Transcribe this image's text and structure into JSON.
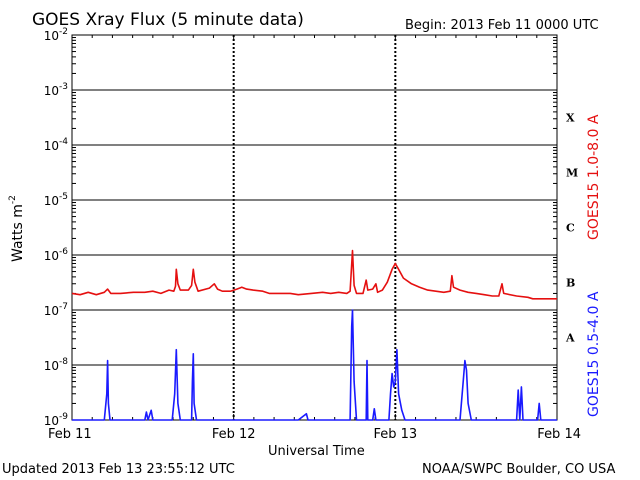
{
  "chart_data": {
    "type": "line",
    "title": "GOES Xray Flux (5 minute data)",
    "begin_label": "Begin:  2013 Feb 11 0000 UTC",
    "xlabel": "Universal Time",
    "ylabel": "Watts m",
    "ylabel_exponent": "-2",
    "y_scale": "log",
    "ylim": [
      1e-09,
      0.01
    ],
    "y_ticks": [
      {
        "base": "10",
        "exp": "-2",
        "value": 0.01
      },
      {
        "base": "10",
        "exp": "-3",
        "value": 0.001
      },
      {
        "base": "10",
        "exp": "-4",
        "value": 0.0001
      },
      {
        "base": "10",
        "exp": "-5",
        "value": 1e-05
      },
      {
        "base": "10",
        "exp": "-6",
        "value": 1e-06
      },
      {
        "base": "10",
        "exp": "-7",
        "value": 1e-07
      },
      {
        "base": "10",
        "exp": "-8",
        "value": 1e-08
      },
      {
        "base": "10",
        "exp": "-9",
        "value": 1e-09
      }
    ],
    "x_ticks": [
      {
        "label": "Feb 11",
        "day": 0
      },
      {
        "label": "Feb 12",
        "day": 1
      },
      {
        "label": "Feb 13",
        "day": 2
      },
      {
        "label": "Feb 14",
        "day": 3
      }
    ],
    "xlim_days": [
      0,
      3
    ],
    "flare_classes": [
      {
        "label": "X",
        "low": 0.0001,
        "high": 0.001
      },
      {
        "label": "M",
        "low": 1e-05,
        "high": 0.0001
      },
      {
        "label": "C",
        "low": 1e-06,
        "high": 1e-05
      },
      {
        "label": "B",
        "low": 1e-07,
        "high": 1e-06
      },
      {
        "label": "A",
        "low": 1e-08,
        "high": 1e-07
      }
    ],
    "grid": true,
    "series": [
      {
        "name": "GOES15 1.0-8.0 A",
        "color": "#e51010",
        "points": [
          [
            0.0,
            2e-07
          ],
          [
            0.05,
            1.9e-07
          ],
          [
            0.1,
            2.1e-07
          ],
          [
            0.15,
            1.9e-07
          ],
          [
            0.2,
            2.1e-07
          ],
          [
            0.22,
            2.4e-07
          ],
          [
            0.24,
            2e-07
          ],
          [
            0.3,
            2e-07
          ],
          [
            0.38,
            2.1e-07
          ],
          [
            0.45,
            2.1e-07
          ],
          [
            0.5,
            2.2e-07
          ],
          [
            0.55,
            2e-07
          ],
          [
            0.6,
            2.3e-07
          ],
          [
            0.63,
            2.2e-07
          ],
          [
            0.64,
            2.7e-07
          ],
          [
            0.645,
            5.5e-07
          ],
          [
            0.655,
            3e-07
          ],
          [
            0.67,
            2.3e-07
          ],
          [
            0.72,
            2.3e-07
          ],
          [
            0.74,
            2.8e-07
          ],
          [
            0.75,
            5.5e-07
          ],
          [
            0.76,
            3.2e-07
          ],
          [
            0.78,
            2.2e-07
          ],
          [
            0.85,
            2.5e-07
          ],
          [
            0.88,
            3e-07
          ],
          [
            0.9,
            2.4e-07
          ],
          [
            0.93,
            2.2e-07
          ],
          [
            0.98,
            2.2e-07
          ],
          [
            1.02,
            2.4e-07
          ],
          [
            1.05,
            2.6e-07
          ],
          [
            1.08,
            2.4e-07
          ],
          [
            1.12,
            2.3e-07
          ],
          [
            1.18,
            2.2e-07
          ],
          [
            1.22,
            2e-07
          ],
          [
            1.3,
            2e-07
          ],
          [
            1.35,
            2e-07
          ],
          [
            1.4,
            1.9e-07
          ],
          [
            1.48,
            2e-07
          ],
          [
            1.55,
            2.1e-07
          ],
          [
            1.6,
            2e-07
          ],
          [
            1.65,
            2.1e-07
          ],
          [
            1.7,
            2e-07
          ],
          [
            1.72,
            2.2e-07
          ],
          [
            1.735,
            1.2e-06
          ],
          [
            1.745,
            2.8e-07
          ],
          [
            1.76,
            2e-07
          ],
          [
            1.8,
            2e-07
          ],
          [
            1.82,
            3.5e-07
          ],
          [
            1.83,
            2.3e-07
          ],
          [
            1.86,
            2.4e-07
          ],
          [
            1.88,
            3e-07
          ],
          [
            1.89,
            2.1e-07
          ],
          [
            1.92,
            2.3e-07
          ],
          [
            1.95,
            3.2e-07
          ],
          [
            1.98,
            5.5e-07
          ],
          [
            2.0,
            7e-07
          ],
          [
            2.02,
            5.5e-07
          ],
          [
            2.05,
            3.8e-07
          ],
          [
            2.1,
            3e-07
          ],
          [
            2.15,
            2.6e-07
          ],
          [
            2.2,
            2.3e-07
          ],
          [
            2.25,
            2.2e-07
          ],
          [
            2.3,
            2.1e-07
          ],
          [
            2.34,
            2.2e-07
          ],
          [
            2.35,
            4.2e-07
          ],
          [
            2.36,
            2.6e-07
          ],
          [
            2.4,
            2.3e-07
          ],
          [
            2.45,
            2.1e-07
          ],
          [
            2.5,
            2e-07
          ],
          [
            2.55,
            1.9e-07
          ],
          [
            2.6,
            1.8e-07
          ],
          [
            2.64,
            1.8e-07
          ],
          [
            2.66,
            3e-07
          ],
          [
            2.67,
            2e-07
          ],
          [
            2.75,
            1.8e-07
          ],
          [
            2.82,
            1.7e-07
          ],
          [
            2.85,
            1.6e-07
          ],
          [
            2.9,
            1.6e-07
          ],
          [
            2.95,
            1.6e-07
          ],
          [
            3.0,
            1.6e-07
          ]
        ]
      },
      {
        "name": "GOES15 0.5-4.0 A",
        "color": "#1a1aff",
        "points": [
          [
            0.0,
            1e-09
          ],
          [
            0.2,
            1e-09
          ],
          [
            0.215,
            3e-09
          ],
          [
            0.22,
            1.2e-08
          ],
          [
            0.225,
            2e-09
          ],
          [
            0.235,
            1e-09
          ],
          [
            0.45,
            1e-09
          ],
          [
            0.46,
            1.4e-09
          ],
          [
            0.47,
            1e-09
          ],
          [
            0.49,
            1.5e-09
          ],
          [
            0.5,
            1e-09
          ],
          [
            0.62,
            1e-09
          ],
          [
            0.635,
            3e-09
          ],
          [
            0.645,
            1.9e-08
          ],
          [
            0.655,
            2e-09
          ],
          [
            0.67,
            1e-09
          ],
          [
            0.74,
            1e-09
          ],
          [
            0.745,
            5e-09
          ],
          [
            0.75,
            1.6e-08
          ],
          [
            0.755,
            2e-09
          ],
          [
            0.77,
            1e-09
          ],
          [
            1.0,
            1e-09
          ],
          [
            1.4,
            1e-09
          ],
          [
            1.45,
            1.3e-09
          ],
          [
            1.46,
            1e-09
          ],
          [
            1.72,
            1e-09
          ],
          [
            1.73,
            5e-08
          ],
          [
            1.735,
            1e-07
          ],
          [
            1.745,
            5e-09
          ],
          [
            1.76,
            1e-09
          ],
          [
            1.82,
            1e-09
          ],
          [
            1.825,
            1.2e-08
          ],
          [
            1.83,
            1e-09
          ],
          [
            1.86,
            1e-09
          ],
          [
            1.87,
            1.6e-09
          ],
          [
            1.88,
            1e-09
          ],
          [
            1.96,
            1e-09
          ],
          [
            1.97,
            3e-09
          ],
          [
            1.98,
            7e-09
          ],
          [
            1.99,
            4e-09
          ],
          [
            2.0,
            5e-09
          ],
          [
            2.01,
            1.9e-08
          ],
          [
            2.02,
            3e-09
          ],
          [
            2.04,
            1.5e-09
          ],
          [
            2.06,
            1e-09
          ],
          [
            2.4,
            1e-09
          ],
          [
            2.42,
            5e-09
          ],
          [
            2.43,
            1.2e-08
          ],
          [
            2.44,
            8e-09
          ],
          [
            2.45,
            2e-09
          ],
          [
            2.47,
            1e-09
          ],
          [
            2.75,
            1e-09
          ],
          [
            2.76,
            3.5e-09
          ],
          [
            2.77,
            1e-09
          ],
          [
            2.78,
            4e-09
          ],
          [
            2.79,
            1e-09
          ],
          [
            2.88,
            1e-09
          ],
          [
            2.89,
            2e-09
          ],
          [
            2.9,
            1e-09
          ],
          [
            3.0,
            1e-09
          ]
        ]
      }
    ]
  },
  "footer": {
    "updated": "Updated 2013 Feb 13 23:55:12 UTC",
    "source": "NOAA/SWPC Boulder, CO USA"
  }
}
